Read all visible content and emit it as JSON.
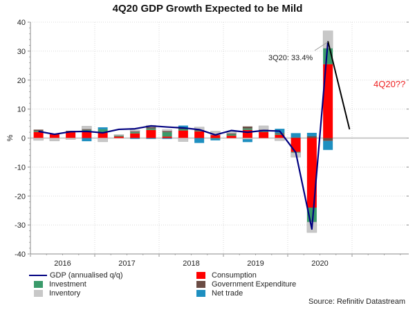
{
  "chart_data": {
    "type": "bar",
    "subtype": "stacked-bar-with-line",
    "title": "4Q20 GDP Growth Expected to be Mild",
    "xlabel": "",
    "ylabel": "%",
    "ylim": [
      -40,
      40
    ],
    "yticks": [
      40,
      30,
      20,
      10,
      0,
      -10,
      -20,
      -30,
      -40
    ],
    "year_labels": [
      "2016",
      "2017",
      "2018",
      "2019",
      "2020"
    ],
    "grid": true,
    "categories": [
      "2016Q1",
      "2016Q2",
      "2016Q3",
      "2016Q4",
      "2017Q1",
      "2017Q2",
      "2017Q3",
      "2017Q4",
      "2018Q1",
      "2018Q2",
      "2018Q3",
      "2018Q4",
      "2019Q1",
      "2019Q2",
      "2019Q3",
      "2019Q4",
      "2020Q1",
      "2020Q2",
      "2020Q3"
    ],
    "series": [
      {
        "name": "Consumption",
        "color": "#ff0000",
        "values": [
          2.1,
          1.3,
          2.0,
          2.1,
          1.9,
          0.5,
          1.6,
          2.8,
          0.5,
          2.6,
          2.3,
          1.0,
          0.8,
          2.8,
          2.1,
          1.1,
          -4.8,
          -24.0,
          25.5
        ]
      },
      {
        "name": "Investment",
        "color": "#3a9a6a",
        "values": [
          0.3,
          0.0,
          0.2,
          0.7,
          1.1,
          0.3,
          0.4,
          0.5,
          1.5,
          0.5,
          0.2,
          -0.2,
          0.5,
          0.5,
          0.4,
          0.3,
          -0.3,
          -5.0,
          5.5
        ]
      },
      {
        "name": "Government Expenditure",
        "color": "#6b4c44",
        "values": [
          0.5,
          0.2,
          0.3,
          0.3,
          0.0,
          0.1,
          0.3,
          0.5,
          0.4,
          0.4,
          0.3,
          0.1,
          0.3,
          0.7,
          0.4,
          0.3,
          0.2,
          0.6,
          -1.0
        ]
      },
      {
        "name": "Inventory",
        "color": "#c8c8c8",
        "values": [
          -0.8,
          -1.0,
          -0.5,
          1.0,
          -1.3,
          0.3,
          0.5,
          0.6,
          0.5,
          -1.2,
          1.0,
          1.3,
          0.7,
          -0.4,
          1.3,
          -0.9,
          -1.5,
          -3.6,
          6.0
        ]
      },
      {
        "name": "Net trade",
        "color": "#1e8fc0",
        "values": [
          0.0,
          0.0,
          0.0,
          -1.1,
          0.7,
          0.0,
          -0.3,
          -0.3,
          -0.3,
          0.8,
          -1.7,
          -0.6,
          0.0,
          -1.0,
          0.0,
          1.5,
          1.5,
          1.2,
          -3.1
        ]
      }
    ],
    "line_series": {
      "name": "GDP (annualised q/q)",
      "color": "#000080",
      "values": [
        2.3,
        1.3,
        2.2,
        2.3,
        1.8,
        3.0,
        3.2,
        4.2,
        3.8,
        3.5,
        2.9,
        1.1,
        2.6,
        2.0,
        2.6,
        2.4,
        -5.0,
        -31.4,
        33.4
      ]
    },
    "projection": {
      "label": "4Q20??",
      "from": "2020Q3",
      "from_value": 33.4,
      "to": "2020Q4",
      "to_value": 3.0,
      "color": "#000000",
      "label_color": "#ee2222"
    },
    "annotations": [
      {
        "text": "3Q20: 33.4%",
        "point": "2020Q3",
        "value": 33.4
      }
    ],
    "legend": [
      {
        "name": "GDP (annualised q/q)",
        "kind": "line",
        "color": "#000080"
      },
      {
        "name": "Consumption",
        "kind": "box",
        "color": "#ff0000"
      },
      {
        "name": "Investment",
        "kind": "box",
        "color": "#3a9a6a"
      },
      {
        "name": "Government Expenditure",
        "kind": "box",
        "color": "#6b4c44"
      },
      {
        "name": "Inventory",
        "kind": "box",
        "color": "#c8c8c8"
      },
      {
        "name": "Net trade",
        "kind": "box",
        "color": "#1e8fc0"
      }
    ],
    "legend_position": "bottom",
    "source": "Source: Refinitiv Datastream"
  }
}
